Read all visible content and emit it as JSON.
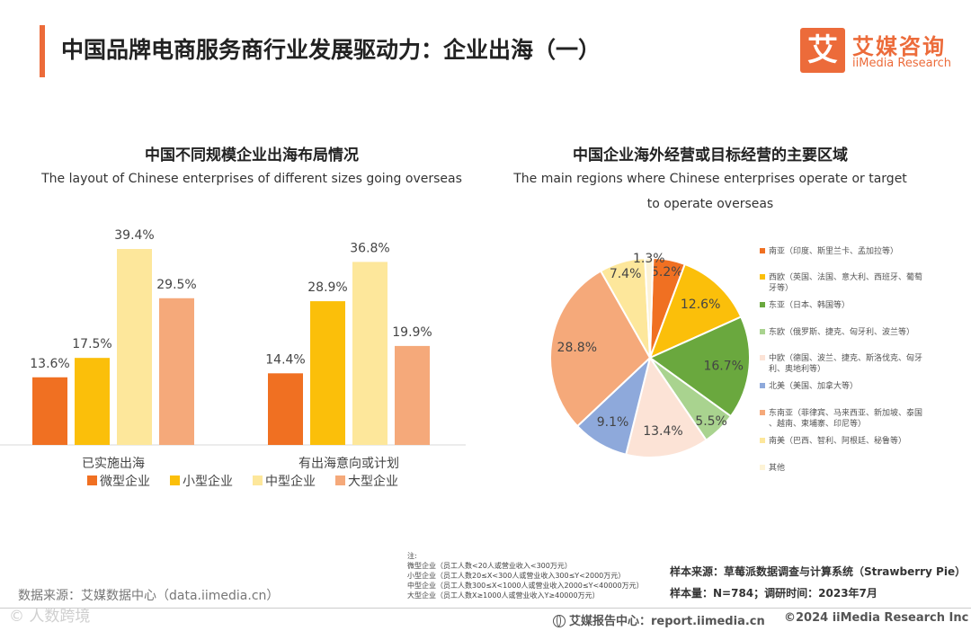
{
  "header": {
    "title": "中国品牌电商服务商行业发展驱动力：企业出海（一）",
    "logo_mark": "艾",
    "logo_cn": "艾媒咨询",
    "logo_en": "iiMedia Research"
  },
  "colors": {
    "accent": "#ec6b3a",
    "micro": "#f07022",
    "small": "#fbbf0a",
    "medium": "#fde79b",
    "large": "#f5a97a"
  },
  "chart_data": [
    {
      "type": "bar",
      "title": "中国不同规模企业出海布局情况",
      "subtitle": "The layout of Chinese enterprises of different sizes going overseas",
      "categories": [
        "已实施出海",
        "有出海意向或计划"
      ],
      "series": [
        {
          "name": "微型企业",
          "color": "#f07022",
          "values": [
            13.6,
            14.4
          ]
        },
        {
          "name": "小型企业",
          "color": "#fbbf0a",
          "values": [
            17.5,
            28.9
          ]
        },
        {
          "name": "中型企业",
          "color": "#fde79b",
          "values": [
            39.4,
            36.8
          ]
        },
        {
          "name": "大型企业",
          "color": "#f5a97a",
          "values": [
            29.5,
            19.9
          ]
        }
      ],
      "value_suffix": "%",
      "ylim": [
        0,
        40
      ],
      "legend": "bottom"
    },
    {
      "type": "pie",
      "title": "中国企业海外经营或目标经营的主要区域",
      "subtitle_lines": [
        "The main regions where Chinese enterprises operate or target",
        "to operate overseas"
      ],
      "legend": "right",
      "slices": [
        {
          "label": "南亚（印度、斯里兰卡、孟加拉等）",
          "value": 5.2,
          "color": "#f07022"
        },
        {
          "label": "西欧（英国、法国、意大利、西班牙、葡萄牙等）",
          "value": 12.6,
          "color": "#fbbf0a"
        },
        {
          "label": "东亚（日本、韩国等）",
          "value": 16.7,
          "color": "#6aa83e"
        },
        {
          "label": "东欧（俄罗斯、捷克、匈牙利、波兰等）",
          "value": 5.5,
          "color": "#a9d38f"
        },
        {
          "label": "中欧（德国、波兰、捷克、斯洛伐克、匈牙利、奥地利等）",
          "value": 13.4,
          "color": "#fce3d6"
        },
        {
          "label": "北美（美国、加拿大等）",
          "value": 9.1,
          "color": "#8ea9db"
        },
        {
          "label": "东南亚（菲律宾、马来西亚、新加坡、泰国、越南、柬埔寨、印尼等）",
          "value": 28.8,
          "color": "#f5a97a"
        },
        {
          "label": "南美（巴西、智利、阿根廷、秘鲁等）",
          "value": 7.4,
          "color": "#fde79b"
        },
        {
          "label": "其他",
          "value": 1.3,
          "color": "#fdf3d6"
        }
      ]
    }
  ],
  "notes": {
    "heading": "注:",
    "lines": [
      "微型企业（员工人数<20人或营业收入<300万元）",
      "小型企业（员工人数20≤X<300人或营业收入300≤Y<2000万元）",
      "中型企业（员工人数300≤X<1000人或营业收入2000≤Y<40000万元）",
      "大型企业（员工人数X≥1000人或营业收入Y≥40000万元）"
    ]
  },
  "meta": {
    "sample_source": "样本来源：草莓派数据调查与计算系统（Strawberry Pie）",
    "sample_size": "样本量：N=784；调研时间：2023年7月"
  },
  "footer": {
    "data_source": "数据来源：艾媒数据中心（data.iimedia.cn）",
    "watermark": "© 人数跨境",
    "report_center": "艾媒报告中心：report.iimedia.cn",
    "copyright": "©2024  iiMedia Research  Inc"
  }
}
